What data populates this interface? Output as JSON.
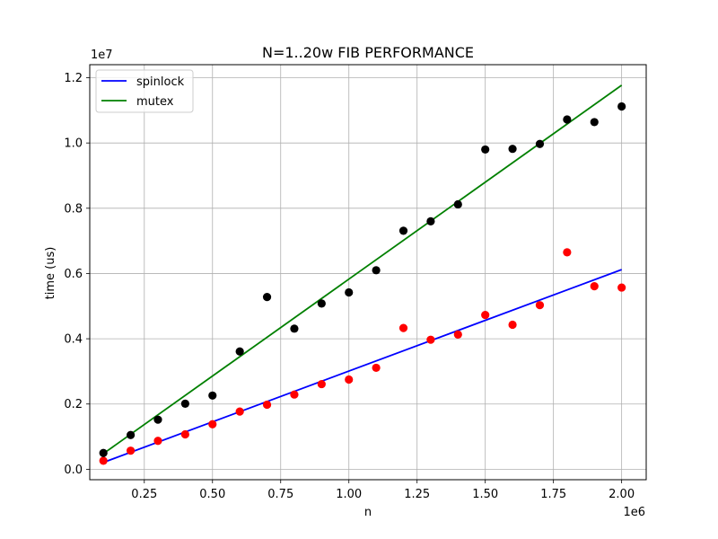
{
  "chart_data": {
    "type": "scatter",
    "title": "N=1..20w FIB PERFORMANCE",
    "xlabel": "n",
    "ylabel": "time (us)",
    "x_offset_label": "1e6",
    "y_offset_label": "1e7",
    "xlim": [
      0.05,
      2.09
    ],
    "ylim": [
      -0.032,
      1.24
    ],
    "x_scale_note": "tick values shown multiplied by 1e6",
    "y_scale_note": "tick values shown multiplied by 1e7",
    "x_ticks": [
      {
        "value": 0.25,
        "label": "0.25"
      },
      {
        "value": 0.5,
        "label": "0.50"
      },
      {
        "value": 0.75,
        "label": "0.75"
      },
      {
        "value": 1.0,
        "label": "1.00"
      },
      {
        "value": 1.25,
        "label": "1.25"
      },
      {
        "value": 1.5,
        "label": "1.50"
      },
      {
        "value": 1.75,
        "label": "1.75"
      },
      {
        "value": 2.0,
        "label": "2.00"
      }
    ],
    "y_ticks": [
      {
        "value": 0.0,
        "label": "0.0"
      },
      {
        "value": 0.2,
        "label": "0.2"
      },
      {
        "value": 0.4,
        "label": "0.4"
      },
      {
        "value": 0.6,
        "label": "0.6"
      },
      {
        "value": 0.8,
        "label": "0.8"
      },
      {
        "value": 1.0,
        "label": "1.0"
      },
      {
        "value": 1.2,
        "label": "1.2"
      }
    ],
    "grid": true,
    "legend_position": "top-left",
    "x": [
      0.1,
      0.2,
      0.3,
      0.4,
      0.5,
      0.6,
      0.7,
      0.8,
      0.9,
      1.0,
      1.1,
      1.2,
      1.3,
      1.4,
      1.5,
      1.6,
      1.7,
      1.8,
      1.9,
      2.0
    ],
    "scatter_series": [
      {
        "color": "#ff0000",
        "values": [
          0.026,
          0.057,
          0.087,
          0.107,
          0.138,
          0.177,
          0.198,
          0.229,
          0.261,
          0.275,
          0.311,
          0.433,
          0.397,
          0.413,
          0.473,
          0.443,
          0.503,
          0.665,
          0.561,
          0.557
        ]
      },
      {
        "color": "#000000",
        "values": [
          0.05,
          0.105,
          0.152,
          0.201,
          0.226,
          0.361,
          0.528,
          0.431,
          0.508,
          0.542,
          0.61,
          0.731,
          0.76,
          0.812,
          0.98,
          0.982,
          0.997,
          1.072,
          1.064,
          1.112
        ]
      }
    ],
    "series": [
      {
        "name": "spinlock",
        "color": "#0000ff",
        "x": [
          0.1,
          2.0
        ],
        "values": [
          0.021,
          0.612
        ]
      },
      {
        "name": "mutex",
        "color": "#008000",
        "x": [
          0.1,
          2.0
        ],
        "values": [
          0.048,
          1.177
        ]
      }
    ]
  }
}
